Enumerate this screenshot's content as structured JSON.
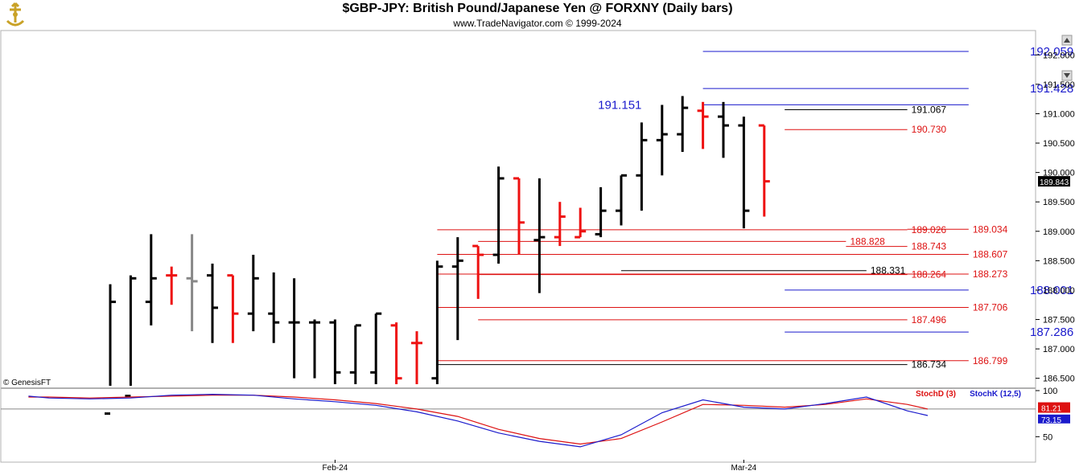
{
  "header": {
    "title": "$GBP-JPY:  British Pound/Japanese Yen @ FORXNY  (Daily bars)",
    "subtitle": "www.TradeNavigator.com © 1999-2024",
    "watermark": "© GenesisFT"
  },
  "colors": {
    "up": "#000000",
    "down": "#ee1111",
    "neutral": "#888888",
    "blue": "#1a1acc",
    "red": "#dd1111",
    "black": "#000000"
  },
  "chart_data": [
    {
      "type": "ohlc",
      "title": "$GBP-JPY:  British Pound/Japanese Yen @ FORXNY  (Daily bars)",
      "ylim": [
        186.4,
        192.25
      ],
      "y_ticks": [
        "192.000",
        "191.500",
        "191.000",
        "190.500",
        "190.000",
        "189.500",
        "189.000",
        "188.500",
        "188.000",
        "187.500",
        "187.000",
        "186.500"
      ],
      "last_price": "189.843",
      "x_labels": [
        {
          "label": "Feb-24",
          "index": 11
        },
        {
          "label": "Mar-24",
          "index": 31
        }
      ],
      "bars": [
        {
          "o": 185.9,
          "h": 188.1,
          "l": 185.6,
          "c": 187.8,
          "dir": "up"
        },
        {
          "o": 186.2,
          "h": 188.25,
          "l": 186.0,
          "c": 188.2,
          "dir": "up"
        },
        {
          "o": 187.8,
          "h": 188.95,
          "l": 187.4,
          "c": 188.2,
          "dir": "up"
        },
        {
          "o": 188.25,
          "h": 188.4,
          "l": 187.75,
          "c": 188.25,
          "dir": "down"
        },
        {
          "o": 188.2,
          "h": 188.95,
          "l": 187.3,
          "c": 188.15,
          "dir": "neutral"
        },
        {
          "o": 188.25,
          "h": 188.45,
          "l": 187.1,
          "c": 187.7,
          "dir": "up"
        },
        {
          "o": 188.25,
          "h": 188.25,
          "l": 187.1,
          "c": 187.6,
          "dir": "down"
        },
        {
          "o": 187.6,
          "h": 188.6,
          "l": 187.3,
          "c": 188.2,
          "dir": "up"
        },
        {
          "o": 187.6,
          "h": 188.3,
          "l": 187.1,
          "c": 187.45,
          "dir": "up"
        },
        {
          "o": 187.45,
          "h": 188.2,
          "l": 186.5,
          "c": 187.45,
          "dir": "up"
        },
        {
          "o": 187.45,
          "h": 187.5,
          "l": 186.5,
          "c": 187.45,
          "dir": "up"
        },
        {
          "o": 187.45,
          "h": 187.5,
          "l": 186.4,
          "c": 186.6,
          "dir": "up"
        },
        {
          "o": 186.6,
          "h": 187.4,
          "l": 186.4,
          "c": 187.4,
          "dir": "up"
        },
        {
          "o": 186.6,
          "h": 187.6,
          "l": 186.4,
          "c": 187.6,
          "dir": "up"
        },
        {
          "o": 187.4,
          "h": 187.45,
          "l": 186.4,
          "c": 186.5,
          "dir": "down"
        },
        {
          "o": 187.1,
          "h": 187.3,
          "l": 186.4,
          "c": 187.1,
          "dir": "down"
        },
        {
          "o": 186.5,
          "h": 188.5,
          "l": 186.4,
          "c": 188.4,
          "dir": "up"
        },
        {
          "o": 188.4,
          "h": 188.9,
          "l": 187.15,
          "c": 188.5,
          "dir": "up"
        },
        {
          "o": 188.75,
          "h": 188.75,
          "l": 187.85,
          "c": 188.6,
          "dir": "down"
        },
        {
          "o": 188.6,
          "h": 190.1,
          "l": 188.45,
          "c": 189.9,
          "dir": "up"
        },
        {
          "o": 189.9,
          "h": 189.9,
          "l": 188.6,
          "c": 189.15,
          "dir": "down"
        },
        {
          "o": 188.85,
          "h": 189.9,
          "l": 187.95,
          "c": 188.9,
          "dir": "up"
        },
        {
          "o": 188.9,
          "h": 189.5,
          "l": 188.75,
          "c": 189.25,
          "dir": "down"
        },
        {
          "o": 188.9,
          "h": 189.4,
          "l": 188.9,
          "c": 189.0,
          "dir": "down"
        },
        {
          "o": 188.95,
          "h": 189.75,
          "l": 188.9,
          "c": 189.35,
          "dir": "up"
        },
        {
          "o": 189.35,
          "h": 189.95,
          "l": 189.1,
          "c": 189.95,
          "dir": "up"
        },
        {
          "o": 189.95,
          "h": 190.85,
          "l": 189.35,
          "c": 190.55,
          "dir": "up"
        },
        {
          "o": 190.55,
          "h": 191.15,
          "l": 189.95,
          "c": 190.65,
          "dir": "up"
        },
        {
          "o": 190.65,
          "h": 191.3,
          "l": 190.35,
          "c": 191.1,
          "dir": "up"
        },
        {
          "o": 191.05,
          "h": 191.2,
          "l": 190.4,
          "c": 190.95,
          "dir": "down"
        },
        {
          "o": 190.95,
          "h": 191.2,
          "l": 190.25,
          "c": 190.8,
          "dir": "up"
        },
        {
          "o": 190.8,
          "h": 190.95,
          "l": 189.05,
          "c": 189.35,
          "dir": "up"
        },
        {
          "o": 190.8,
          "h": 190.8,
          "l": 189.25,
          "c": 189.85,
          "dir": "down"
        }
      ],
      "levels": [
        {
          "value": 192.059,
          "label": "192.059",
          "color": "blue",
          "big": true,
          "x1": 29,
          "x2": 42,
          "lx": 45
        },
        {
          "value": 191.428,
          "label": "191.428",
          "color": "blue",
          "big": true,
          "x1": 29,
          "x2": 42,
          "lx": 45
        },
        {
          "value": 191.151,
          "label": "191.151",
          "color": "blue",
          "big": true,
          "x1": 29,
          "x2": 42,
          "lx": 26,
          "anchor": "end"
        },
        {
          "value": 191.067,
          "label": "191.067",
          "color": "black",
          "big": false,
          "x1": 33,
          "x2": 39,
          "lx": 39.2
        },
        {
          "value": 190.73,
          "label": "190.730",
          "color": "red",
          "big": false,
          "x1": 33,
          "x2": 39,
          "lx": 39.2
        },
        {
          "value": 189.026,
          "label": "189.026",
          "color": "red",
          "big": false,
          "x1": 16,
          "x2": 39,
          "lx": 39.2
        },
        {
          "value": 189.034,
          "label": "189.034",
          "color": "red",
          "big": false,
          "x1": 39,
          "x2": 42,
          "lx": 42.2
        },
        {
          "value": 188.828,
          "label": "188.828",
          "color": "red",
          "big": false,
          "x1": 18,
          "x2": 36,
          "lx": 36.2
        },
        {
          "value": 188.743,
          "label": "188.743",
          "color": "red",
          "big": false,
          "x1": 36,
          "x2": 39,
          "lx": 39.2
        },
        {
          "value": 188.607,
          "label": "188.607",
          "color": "red",
          "big": false,
          "x1": 16,
          "x2": 42,
          "lx": 42.2
        },
        {
          "value": 188.331,
          "label": "188.331",
          "color": "black",
          "big": false,
          "x1": 25,
          "x2": 37,
          "lx": 37.2
        },
        {
          "value": 188.273,
          "label": "188.273",
          "color": "red",
          "big": false,
          "x1": 16,
          "x2": 42,
          "lx": 42.2
        },
        {
          "value": 188.264,
          "label": "188.264",
          "color": "red",
          "big": false,
          "x1": 18,
          "x2": 39,
          "lx": 39.2
        },
        {
          "value": 188.001,
          "label": "188.001",
          "color": "blue",
          "big": true,
          "x1": 33,
          "x2": 42,
          "lx": 45
        },
        {
          "value": 187.706,
          "label": "187.706",
          "color": "red",
          "big": false,
          "x1": 16,
          "x2": 42,
          "lx": 42.2
        },
        {
          "value": 187.496,
          "label": "187.496",
          "color": "red",
          "big": false,
          "x1": 18,
          "x2": 39,
          "lx": 39.2
        },
        {
          "value": 187.286,
          "label": "187.286",
          "color": "blue",
          "big": true,
          "x1": 33,
          "x2": 42,
          "lx": 45
        },
        {
          "value": 186.799,
          "label": "186.799",
          "color": "red",
          "big": false,
          "x1": 16,
          "x2": 42,
          "lx": 42.2
        },
        {
          "value": 186.734,
          "label": "186.734",
          "color": "black",
          "big": false,
          "x1": 16,
          "x2": 39,
          "lx": 39.2
        }
      ]
    },
    {
      "type": "line",
      "legend": [
        "StochD (3)",
        "StochK (12,5)"
      ],
      "ylim": [
        25,
        100
      ],
      "y_ticks": [
        "100",
        "50"
      ],
      "last_values": {
        "d": "81.21",
        "k": "73.15"
      },
      "series": [
        {
          "name": "StochD (3)",
          "color": "red",
          "x": [
            -4,
            -3,
            -1,
            1,
            3,
            5,
            7,
            9,
            11,
            13,
            15,
            17,
            19,
            21,
            23,
            25,
            27,
            29,
            31,
            33,
            35,
            37,
            39,
            40
          ],
          "values": [
            93,
            93,
            92,
            93,
            94,
            95,
            95,
            93,
            90,
            86,
            80,
            72,
            58,
            48,
            42,
            48,
            66,
            85,
            84,
            82,
            85,
            91,
            85,
            80
          ]
        },
        {
          "name": "StochK (12,5)",
          "color": "blue",
          "x": [
            -4,
            -3,
            -1,
            1,
            3,
            5,
            7,
            9,
            11,
            13,
            15,
            17,
            19,
            21,
            23,
            25,
            27,
            29,
            31,
            33,
            35,
            37,
            39,
            40
          ],
          "values": [
            94,
            92,
            91,
            92,
            95,
            96,
            95,
            91,
            88,
            84,
            77,
            67,
            54,
            45,
            39,
            52,
            76,
            90,
            82,
            80,
            86,
            93,
            78,
            73
          ]
        }
      ]
    }
  ]
}
